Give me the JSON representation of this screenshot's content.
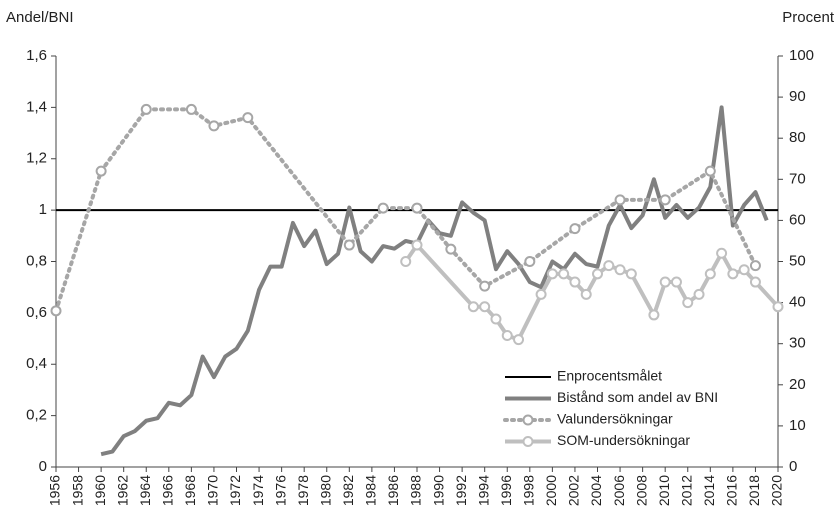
{
  "chart_data": {
    "type": "line",
    "y_label": "Andel/BNI",
    "y2_label": "Procent",
    "xlim": [
      1956,
      2020
    ],
    "xticks": [
      1956,
      1958,
      1960,
      1962,
      1964,
      1966,
      1968,
      1970,
      1972,
      1974,
      1976,
      1978,
      1980,
      1982,
      1984,
      1986,
      1988,
      1990,
      1992,
      1994,
      1996,
      1998,
      2000,
      2002,
      2004,
      2006,
      2008,
      2010,
      2012,
      2014,
      2016,
      2018,
      2020
    ],
    "ylim": [
      0,
      1.6
    ],
    "yticks": [
      0,
      {
        "value": 0.2,
        "label": "0,2"
      },
      {
        "value": 0.4,
        "label": "0,4"
      },
      {
        "value": 0.6,
        "label": "0,6"
      },
      {
        "value": 0.8,
        "label": "0,8"
      },
      1,
      {
        "value": 1.2,
        "label": "1,2"
      },
      {
        "value": 1.4,
        "label": "1,4"
      },
      {
        "value": 1.6,
        "label": "1,6"
      }
    ],
    "y2lim": [
      0,
      100
    ],
    "y2ticks": [
      0,
      10,
      20,
      30,
      40,
      50,
      60,
      70,
      80,
      90,
      100
    ],
    "legend": "bottom-right",
    "series": [
      {
        "name": "Enprocentsmålet",
        "color": "#000000",
        "style": "solid",
        "markers": false,
        "x": [
          1956,
          2020
        ],
        "values": [
          1,
          1
        ]
      },
      {
        "name": "Bistånd som andel av BNI",
        "color": "#808080",
        "style": "solid",
        "markers": false,
        "x": [
          1960,
          1961,
          1962,
          1963,
          1964,
          1965,
          1966,
          1967,
          1968,
          1969,
          1970,
          1971,
          1972,
          1973,
          1974,
          1975,
          1976,
          1977,
          1978,
          1979,
          1980,
          1981,
          1982,
          1983,
          1984,
          1985,
          1986,
          1987,
          1988,
          1989,
          1990,
          1991,
          1992,
          1993,
          1994,
          1995,
          1996,
          1997,
          1998,
          1999,
          2000,
          2001,
          2002,
          2003,
          2004,
          2005,
          2006,
          2007,
          2008,
          2009,
          2010,
          2011,
          2012,
          2013,
          2014,
          2015,
          2016,
          2017,
          2018,
          2019
        ],
        "values": [
          0.05,
          0.06,
          0.12,
          0.14,
          0.18,
          0.19,
          0.25,
          0.24,
          0.28,
          0.43,
          0.35,
          0.43,
          0.46,
          0.53,
          0.69,
          0.78,
          0.78,
          0.95,
          0.86,
          0.92,
          0.79,
          0.83,
          1.01,
          0.84,
          0.8,
          0.86,
          0.85,
          0.88,
          0.87,
          0.96,
          0.91,
          0.9,
          1.03,
          0.99,
          0.96,
          0.77,
          0.84,
          0.79,
          0.72,
          0.7,
          0.8,
          0.77,
          0.83,
          0.79,
          0.78,
          0.94,
          1.02,
          0.93,
          0.98,
          1.12,
          0.97,
          1.02,
          0.97,
          1.01,
          1.09,
          1.4,
          0.94,
          1.02,
          1.07,
          0.96
        ]
      },
      {
        "name": "Valundersökningar",
        "color": "#a6a6a6",
        "style": "dotted",
        "markers": true,
        "axis": "y2",
        "x": [
          1956,
          1960,
          1964,
          1968,
          1970,
          1973,
          1982,
          1985,
          1988,
          1991,
          1994,
          1998,
          2002,
          2006,
          2010,
          2014,
          2018
        ],
        "values": [
          38,
          72,
          87,
          87,
          83,
          85,
          54,
          63,
          63,
          53,
          44,
          50,
          58,
          65,
          65,
          72,
          49
        ]
      },
      {
        "name": "SOM-undersökningar",
        "color": "#bfbfbf",
        "style": "solid",
        "markers": true,
        "axis": "y2",
        "x": [
          1987,
          1988,
          1993,
          1994,
          1995,
          1996,
          1997,
          1999,
          2000,
          2001,
          2002,
          2003,
          2004,
          2005,
          2006,
          2007,
          2009,
          2010,
          2011,
          2012,
          2013,
          2014,
          2015,
          2016,
          2017,
          2018,
          2020
        ],
        "values": [
          50,
          54,
          39,
          39,
          36,
          32,
          31,
          42,
          47,
          47,
          45,
          42,
          47,
          49,
          48,
          47,
          37,
          45,
          45,
          40,
          42,
          47,
          52,
          47,
          48,
          45,
          39
        ]
      }
    ]
  }
}
